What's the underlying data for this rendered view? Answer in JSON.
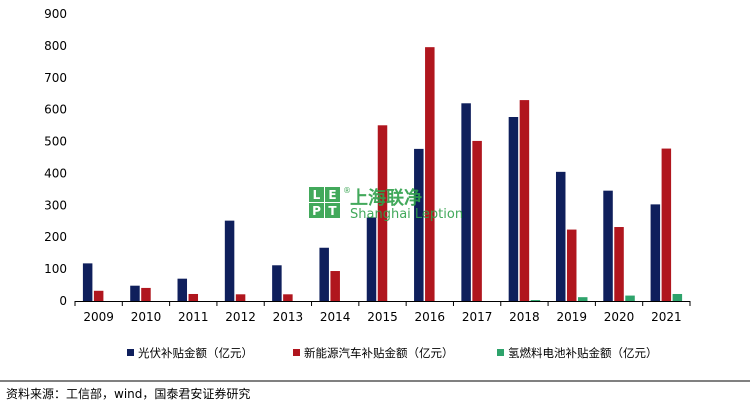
{
  "chart_data": {
    "type": "bar",
    "categories": [
      "2009",
      "2010",
      "2011",
      "2012",
      "2013",
      "2014",
      "2015",
      "2016",
      "2017",
      "2018",
      "2019",
      "2020",
      "2021"
    ],
    "series": [
      {
        "name": "光伏补贴金额（亿元）",
        "color": "#0f1f5c",
        "values": [
          118,
          48,
          70,
          252,
          112,
          167,
          262,
          477,
          620,
          577,
          405,
          346,
          303
        ]
      },
      {
        "name": "新能源汽车补贴金额（亿元）",
        "color": "#b0161e",
        "values": [
          32,
          41,
          22,
          21,
          21,
          94,
          551,
          796,
          502,
          630,
          224,
          232,
          478
        ]
      },
      {
        "name": "氢燃料电池补贴金额（亿元）",
        "color": "#2ea36b",
        "values": [
          0,
          0,
          0,
          0,
          0,
          0,
          0,
          0,
          0,
          3,
          12,
          17,
          22
        ]
      }
    ],
    "ylim": [
      0,
      900
    ],
    "yticks": [
      0,
      100,
      200,
      300,
      400,
      500,
      600,
      700,
      800,
      900
    ],
    "legend_position": "bottom"
  },
  "source_note": "资料来源：工信部，wind，国泰君安证券研究",
  "watermark": {
    "letters": [
      "L",
      "E",
      "P",
      "T"
    ],
    "registered": "®",
    "cn_text": "上海联净",
    "en_text": "Shanghai Leption"
  }
}
